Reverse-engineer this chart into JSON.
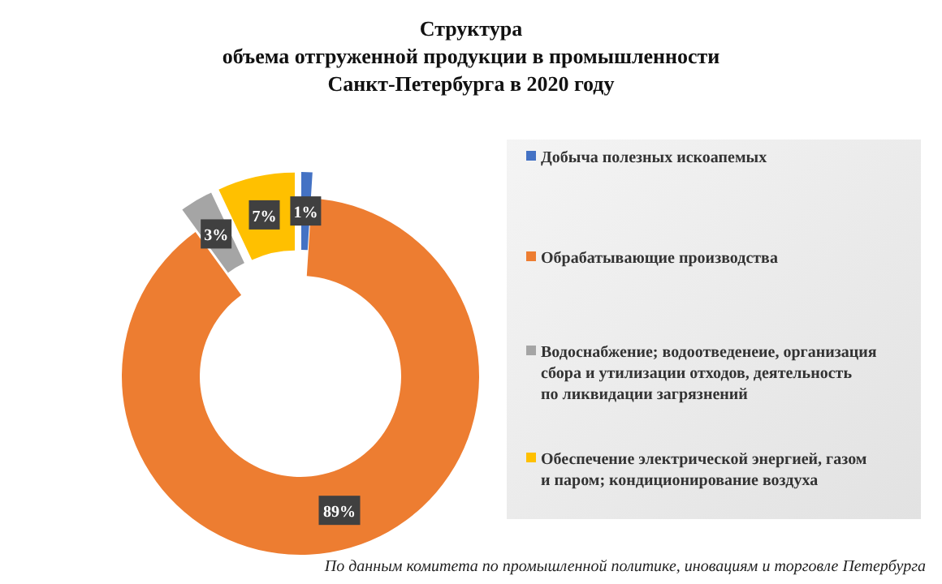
{
  "chart_data": {
    "type": "donut",
    "title": "Структура\nобъема отгруженной продукции в промышленности\nСанкт-Петербурга в 2020 году",
    "categories": [
      "Добыча полезных искоапемых",
      "Обрабатывающие производства",
      "Водоснабжение; водоотведенеие, организация сбора и утилизации отходов, деятельность по ликвидации загрязнений",
      "Обеспечение электрической энергией, газом и паром; кондиционирование воздуха"
    ],
    "values": [
      1,
      89,
      3,
      7
    ],
    "colors": [
      "#4472c4",
      "#ed7d31",
      "#a5a5a5",
      "#ffc000"
    ],
    "value_labels": [
      "1%",
      "89%",
      "3%",
      "7%"
    ],
    "legend": "right",
    "annotations": [
      "По данным комитета по промышленной политике, иновациям и торговле Петербурга"
    ]
  }
}
